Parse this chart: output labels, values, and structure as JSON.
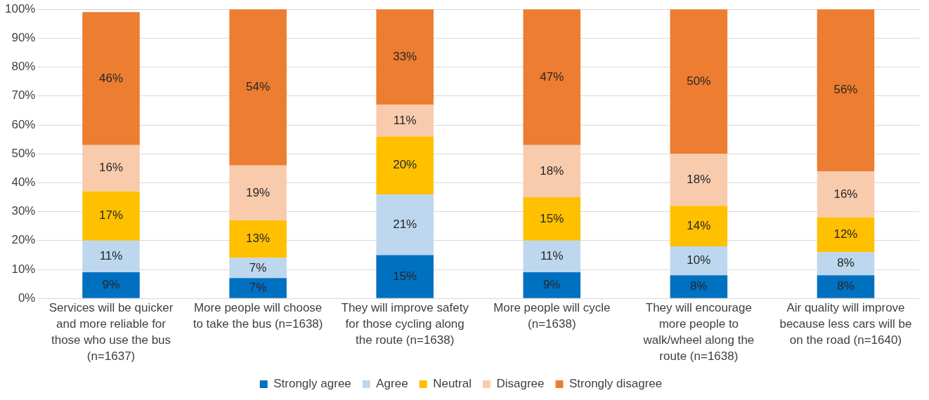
{
  "chart_data": {
    "type": "bar",
    "stacked": true,
    "categories": [
      "Services will be quicker and more reliable for those who use the bus (n=1637)",
      "More people will choose to take the bus (n=1638)",
      "They will improve safety for those cycling along the route (n=1638)",
      "More people will cycle (n=1638)",
      "They will encourage more people to walk/wheel along the route (n=1638)",
      "Air quality will improve because less cars will be on the road (n=1640)"
    ],
    "series": [
      {
        "name": "Strongly agree",
        "color": "#0070c0",
        "values": [
          9,
          7,
          15,
          9,
          8,
          8
        ],
        "value_labels": [
          "9%",
          "7%",
          "15%",
          "9%",
          "8%",
          "8%"
        ]
      },
      {
        "name": "Agree",
        "color": "#bdd7ee",
        "values": [
          11,
          7,
          21,
          11,
          10,
          8
        ],
        "value_labels": [
          "11%",
          "7%",
          "21%",
          "11%",
          "10%",
          "8%"
        ]
      },
      {
        "name": "Neutral",
        "color": "#ffc000",
        "values": [
          17,
          13,
          20,
          15,
          14,
          12
        ],
        "value_labels": [
          "17%",
          "13%",
          "20%",
          "15%",
          "14%",
          "12%"
        ]
      },
      {
        "name": "Disagree",
        "color": "#f8cbad",
        "values": [
          16,
          19,
          11,
          18,
          18,
          16
        ],
        "value_labels": [
          "16%",
          "19%",
          "11%",
          "18%",
          "18%",
          "16%"
        ]
      },
      {
        "name": "Strongly disagree",
        "color": "#ed7d31",
        "values": [
          46,
          54,
          33,
          47,
          50,
          56
        ],
        "value_labels": [
          "46%",
          "54%",
          "33%",
          "47%",
          "50%",
          "56%"
        ]
      }
    ],
    "ylim": [
      0,
      100
    ],
    "yticks": [
      {
        "value": 0,
        "label": "0%"
      },
      {
        "value": 10,
        "label": "10%"
      },
      {
        "value": 20,
        "label": "20%"
      },
      {
        "value": 30,
        "label": "30%"
      },
      {
        "value": 40,
        "label": "40%"
      },
      {
        "value": 50,
        "label": "50%"
      },
      {
        "value": 60,
        "label": "60%"
      },
      {
        "value": 70,
        "label": "70%"
      },
      {
        "value": 80,
        "label": "80%"
      },
      {
        "value": 90,
        "label": "90%"
      },
      {
        "value": 100,
        "label": "100%"
      }
    ],
    "grid": "y",
    "legend": "bottom"
  }
}
